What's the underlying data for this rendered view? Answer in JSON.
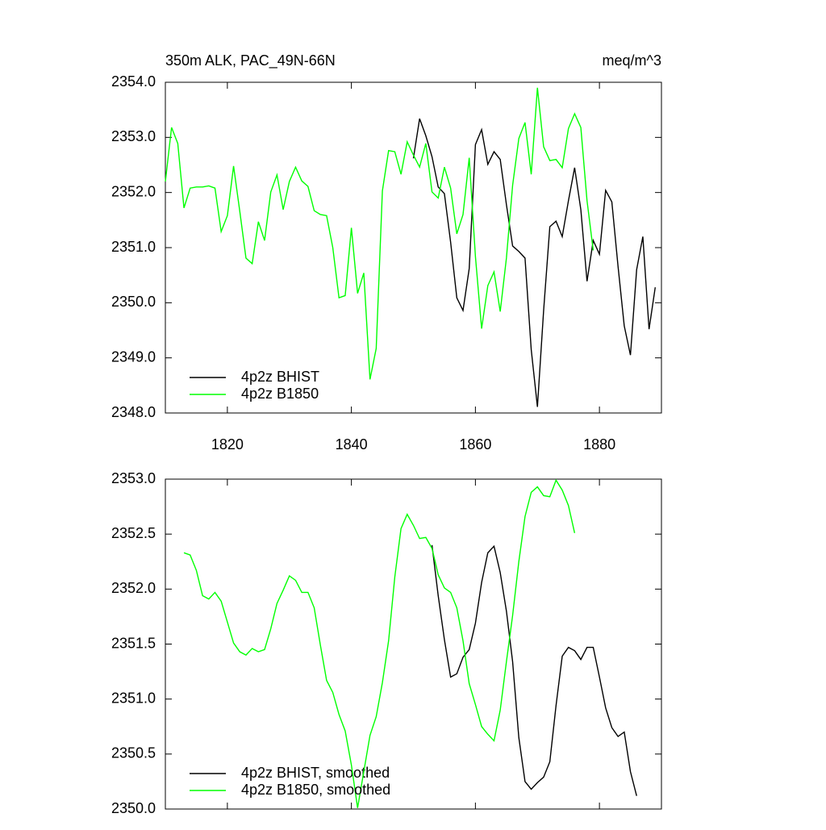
{
  "chart_data": [
    {
      "type": "line",
      "title": "350m ALK, PAC_49N-66N",
      "units": "meq/m^3",
      "xlim": [
        1810,
        1890
      ],
      "xticks": [
        1820,
        1840,
        1860,
        1880
      ],
      "ylim": [
        2348,
        2354
      ],
      "yticks": [
        {
          "value": 2348,
          "label": "2348.0"
        },
        {
          "value": 2349,
          "label": "2349.0"
        },
        {
          "value": 2350,
          "label": "2350.0"
        },
        {
          "value": 2351,
          "label": "2351.0"
        },
        {
          "value": 2352,
          "label": "2352.0"
        },
        {
          "value": 2353,
          "label": "2353.0"
        },
        {
          "value": 2354,
          "label": "2354.0"
        }
      ],
      "legend": "lower left",
      "series": [
        {
          "name": "4p2z BHIST",
          "color": "#000000",
          "x": [
            1850,
            1851,
            1852,
            1853,
            1854,
            1855,
            1856,
            1857,
            1858,
            1859,
            1860,
            1861,
            1862,
            1863,
            1864,
            1865,
            1866,
            1867,
            1868,
            1869,
            1870,
            1871,
            1872,
            1873,
            1874,
            1875,
            1876,
            1877,
            1878,
            1879,
            1880,
            1881,
            1882,
            1883,
            1884,
            1885,
            1886,
            1887,
            1888,
            1889
          ],
          "values": [
            2352.62,
            2353.34,
            2353.03,
            2352.65,
            2352.1,
            2351.98,
            2351.1,
            2350.09,
            2349.86,
            2350.62,
            2352.87,
            2353.14,
            2352.51,
            2352.74,
            2352.6,
            2351.78,
            2351.03,
            2350.93,
            2350.81,
            2349.15,
            2348.11,
            2349.86,
            2351.38,
            2351.48,
            2351.2,
            2351.85,
            2352.45,
            2351.69,
            2350.39,
            2351.13,
            2350.88,
            2352.04,
            2351.83,
            2350.66,
            2349.58,
            2349.05,
            2350.6,
            2351.2,
            2349.52,
            2350.28
          ]
        },
        {
          "name": "4p2z B1850",
          "color": "#00ff00",
          "x": [
            1810,
            1811,
            1812,
            1813,
            1814,
            1815,
            1816,
            1817,
            1818,
            1819,
            1820,
            1821,
            1822,
            1823,
            1824,
            1825,
            1826,
            1827,
            1828,
            1829,
            1830,
            1831,
            1832,
            1833,
            1834,
            1835,
            1836,
            1837,
            1838,
            1839,
            1840,
            1841,
            1842,
            1843,
            1844,
            1845,
            1846,
            1847,
            1848,
            1849,
            1850,
            1851,
            1852,
            1853,
            1854,
            1855,
            1856,
            1857,
            1858,
            1859,
            1860,
            1861,
            1862,
            1863,
            1864,
            1865,
            1866,
            1867,
            1868,
            1869,
            1870,
            1871,
            1872,
            1873,
            1874,
            1875,
            1876,
            1877,
            1878,
            1879
          ],
          "values": [
            2352.2,
            2353.18,
            2352.89,
            2351.72,
            2352.08,
            2352.1,
            2352.1,
            2352.12,
            2352.08,
            2351.29,
            2351.58,
            2352.48,
            2351.66,
            2350.81,
            2350.71,
            2351.47,
            2351.13,
            2352.01,
            2352.32,
            2351.69,
            2352.2,
            2352.46,
            2352.21,
            2352.11,
            2351.67,
            2351.6,
            2351.58,
            2351.0,
            2350.09,
            2350.13,
            2351.36,
            2350.17,
            2350.54,
            2348.61,
            2349.17,
            2352.03,
            2352.76,
            2352.74,
            2352.33,
            2352.92,
            2352.68,
            2352.46,
            2352.89,
            2352.01,
            2351.9,
            2352.46,
            2352.08,
            2351.25,
            2351.6,
            2352.63,
            2350.84,
            2349.53,
            2350.31,
            2350.56,
            2349.84,
            2350.81,
            2352.13,
            2352.98,
            2353.27,
            2352.33,
            2353.9,
            2352.83,
            2352.58,
            2352.6,
            2352.45,
            2353.16,
            2353.43,
            2353.18,
            2351.85,
            2350.95
          ]
        }
      ]
    },
    {
      "type": "line",
      "xlim": [
        1810,
        1890
      ],
      "xticks": [
        1820,
        1840,
        1860,
        1880
      ],
      "ylim": [
        2350,
        2353
      ],
      "yticks": [
        {
          "value": 2350,
          "label": "2350.0"
        },
        {
          "value": 2350.5,
          "label": "2350.5"
        },
        {
          "value": 2351,
          "label": "2351.0"
        },
        {
          "value": 2351.5,
          "label": "2351.5"
        },
        {
          "value": 2352,
          "label": "2352.0"
        },
        {
          "value": 2352.5,
          "label": "2352.5"
        },
        {
          "value": 2353,
          "label": "2353.0"
        }
      ],
      "legend": "lower left",
      "series": [
        {
          "name": "4p2z BHIST, smoothed",
          "color": "#000000",
          "x": [
            1853,
            1854,
            1855,
            1856,
            1857,
            1858,
            1859,
            1860,
            1861,
            1862,
            1863,
            1864,
            1865,
            1866,
            1867,
            1868,
            1869,
            1870,
            1871,
            1872,
            1873,
            1874,
            1875,
            1876,
            1877,
            1878,
            1879,
            1880,
            1881,
            1882,
            1883,
            1884,
            1885,
            1886
          ],
          "values": [
            2352.4,
            2351.94,
            2351.54,
            2351.2,
            2351.23,
            2351.38,
            2351.45,
            2351.69,
            2352.06,
            2352.33,
            2352.39,
            2352.15,
            2351.8,
            2351.34,
            2350.65,
            2350.25,
            2350.18,
            2350.24,
            2350.29,
            2350.43,
            2350.94,
            2351.39,
            2351.47,
            2351.44,
            2351.36,
            2351.47,
            2351.47,
            2351.2,
            2350.92,
            2350.74,
            2350.66,
            2350.7,
            2350.34,
            2350.12
          ]
        },
        {
          "name": "4p2z B1850, smoothed",
          "color": "#00ff00",
          "x": [
            1813,
            1814,
            1815,
            1816,
            1817,
            1818,
            1819,
            1820,
            1821,
            1822,
            1823,
            1824,
            1825,
            1826,
            1827,
            1828,
            1829,
            1830,
            1831,
            1832,
            1833,
            1834,
            1835,
            1836,
            1837,
            1838,
            1839,
            1840,
            1841,
            1842,
            1843,
            1844,
            1845,
            1846,
            1847,
            1848,
            1849,
            1850,
            1851,
            1852,
            1853,
            1854,
            1855,
            1856,
            1857,
            1858,
            1859,
            1860,
            1861,
            1862,
            1863,
            1864,
            1865,
            1866,
            1867,
            1868,
            1869,
            1870,
            1871,
            1872,
            1873,
            1874,
            1875,
            1876
          ],
          "values": [
            2352.33,
            2352.31,
            2352.17,
            2351.94,
            2351.91,
            2351.97,
            2351.89,
            2351.7,
            2351.51,
            2351.43,
            2351.4,
            2351.46,
            2351.43,
            2351.45,
            2351.64,
            2351.87,
            2351.99,
            2352.12,
            2352.08,
            2351.97,
            2351.97,
            2351.83,
            2351.49,
            2351.17,
            2351.06,
            2350.86,
            2350.71,
            2350.4,
            2350.01,
            2350.34,
            2350.67,
            2350.84,
            2351.15,
            2351.53,
            2352.11,
            2352.55,
            2352.68,
            2352.58,
            2352.46,
            2352.47,
            2352.37,
            2352.13,
            2352.01,
            2351.97,
            2351.83,
            2351.53,
            2351.14,
            2350.95,
            2350.75,
            2350.68,
            2350.62,
            2350.9,
            2351.34,
            2351.76,
            2352.25,
            2352.66,
            2352.88,
            2352.93,
            2352.85,
            2352.84,
            2352.99,
            2352.9,
            2352.76,
            2352.51
          ]
        }
      ]
    }
  ]
}
